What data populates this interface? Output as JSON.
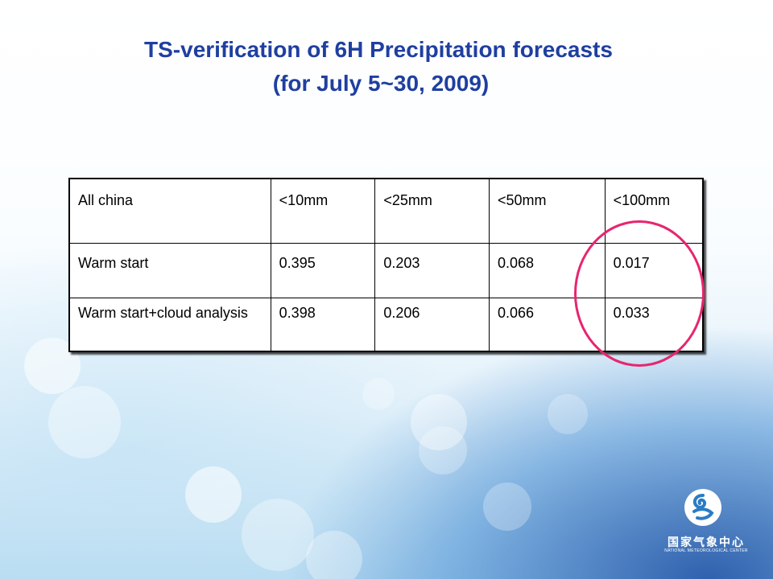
{
  "title": {
    "line1": "TS-verification of 6H Precipitation forecasts",
    "line2": "(for July 5~30, 2009)"
  },
  "table": {
    "header": [
      "All china",
      "<10mm",
      "<25mm",
      "<50mm",
      "<100mm"
    ],
    "rows": [
      [
        "Warm start",
        "0.395",
        "0.203",
        "0.068",
        "0.017"
      ],
      [
        "Warm start+cloud analysis",
        "0.398",
        "0.206",
        "0.066",
        "0.033"
      ]
    ]
  },
  "logo": {
    "chinese": "国家气象中心",
    "english": "NATIONAL METEOROLOGICAL CENTER"
  },
  "colors": {
    "title": "#1f3fa0",
    "highlight_circle": "#e8256e"
  }
}
